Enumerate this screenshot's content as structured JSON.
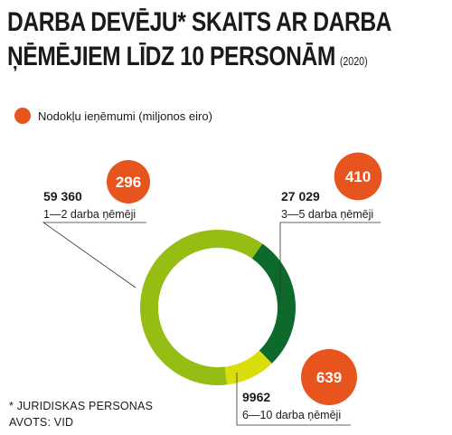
{
  "title": {
    "line1": "DARBA DEVĒJU* SKAITS AR DARBA",
    "line2": "ŅĒMĒJIEM LĪDZ 10 PERSONĀM",
    "year": "(2020)"
  },
  "legend": {
    "label": "Nodokļu ieņēmumi (miljonos eiro)",
    "color": "#e8541e"
  },
  "footnote": {
    "note": "* JURIDISKAS PERSONAS",
    "source": "AVOTS: VID"
  },
  "chart_data": {
    "type": "pie",
    "variant": "donut",
    "slices": [
      {
        "label": "1—2 darba ņēmēji",
        "value": 59360,
        "value_text": "59 360",
        "tax": 296,
        "color": "#95bd14"
      },
      {
        "label": "3—5 darba ņēmēji",
        "value": 27029,
        "value_text": "27 029",
        "tax": 410,
        "color": "#0e6a2c"
      },
      {
        "label": "6—10 darba ņēmēji",
        "value": 9962,
        "value_text": "9962",
        "tax": 639,
        "color": "#dbdd0a"
      }
    ],
    "bubble_color": "#e8541e"
  }
}
